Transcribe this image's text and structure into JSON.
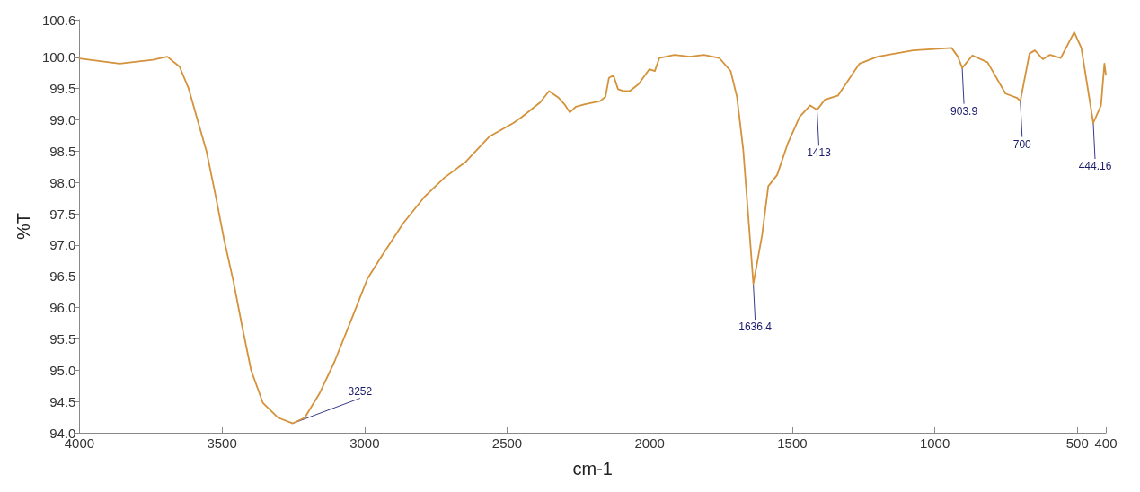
{
  "chart_data": {
    "type": "line",
    "xlabel": "cm-1",
    "ylabel": "%T",
    "xlim": [
      4000,
      400
    ],
    "xticks": [
      4000,
      3500,
      3000,
      2500,
      2000,
      1500,
      1000,
      500,
      400
    ],
    "ylim": [
      94.0,
      100.6
    ],
    "yticks": [
      {
        "value": 94,
        "label": "94.0"
      },
      94.5,
      {
        "value": 95,
        "label": "95.0"
      },
      95.5,
      {
        "value": 96,
        "label": "96.0"
      },
      96.5,
      {
        "value": 97,
        "label": "97.0"
      },
      97.5,
      {
        "value": 98,
        "label": "98.0"
      },
      98.5,
      {
        "value": 99,
        "label": "99.0"
      },
      99.5,
      {
        "value": 100,
        "label": "100.0"
      },
      100.6
    ],
    "grid": false,
    "marker": "none",
    "line_style": "solid",
    "series": [
      {
        "color": "#d4923a",
        "x": [
          4000,
          3859,
          3743,
          3692,
          3649,
          3617,
          3586,
          3554,
          3523,
          3492,
          3460,
          3429,
          3398,
          3357,
          3303,
          3252,
          3210,
          3159,
          3106,
          3053,
          2990,
          2939,
          2864,
          2792,
          2719,
          2645,
          2563,
          2478,
          2447,
          2384,
          2353,
          2321,
          2299,
          2280,
          2259,
          2227,
          2174,
          2155,
          2143,
          2127,
          2111,
          2092,
          2070,
          2039,
          2001,
          1982,
          1966,
          1913,
          1860,
          1810,
          1756,
          1716,
          1694,
          1672,
          1653,
          1636.4,
          1606,
          1584,
          1553,
          1515,
          1474,
          1437,
          1413,
          1386,
          1339,
          1264,
          1201,
          1076,
          941,
          919,
          903.9,
          868,
          815,
          752,
          711,
          700,
          668,
          649,
          621,
          596,
          558,
          511,
          486,
          444.16,
          417,
          405,
          400
        ],
        "values": [
          99.98,
          99.9,
          99.96,
          100.01,
          99.85,
          99.5,
          99.0,
          98.49,
          97.8,
          97.07,
          96.42,
          95.69,
          95.0,
          94.48,
          94.24,
          94.15,
          94.24,
          94.62,
          95.13,
          95.73,
          96.46,
          96.83,
          97.35,
          97.76,
          98.08,
          98.33,
          98.73,
          98.95,
          99.05,
          99.28,
          99.46,
          99.36,
          99.25,
          99.12,
          99.21,
          99.25,
          99.3,
          99.37,
          99.67,
          99.71,
          99.49,
          99.46,
          99.46,
          99.57,
          99.81,
          99.78,
          99.99,
          100.04,
          100.01,
          100.04,
          99.99,
          99.78,
          99.37,
          98.53,
          97.39,
          96.38,
          97.15,
          97.94,
          98.12,
          98.63,
          99.05,
          99.23,
          99.16,
          99.32,
          99.39,
          99.9,
          100.01,
          100.11,
          100.15,
          100.01,
          99.83,
          100.03,
          99.92,
          99.42,
          99.35,
          99.3,
          100.06,
          100.11,
          99.97,
          100.04,
          99.99,
          100.4,
          100.15,
          98.95,
          99.23,
          99.9,
          99.72
        ]
      }
    ],
    "annotations": [
      {
        "text": "3252",
        "x": 3252,
        "y": 94.15
      },
      {
        "text": "1636.4",
        "x": 1636.4,
        "y": 96.38
      },
      {
        "text": "1413",
        "x": 1413,
        "y": 99.16
      },
      {
        "text": "903.9",
        "x": 903.9,
        "y": 99.83
      },
      {
        "text": "700",
        "x": 700,
        "y": 99.3
      },
      {
        "text": "444.16",
        "x": 444.16,
        "y": 98.95
      }
    ]
  }
}
